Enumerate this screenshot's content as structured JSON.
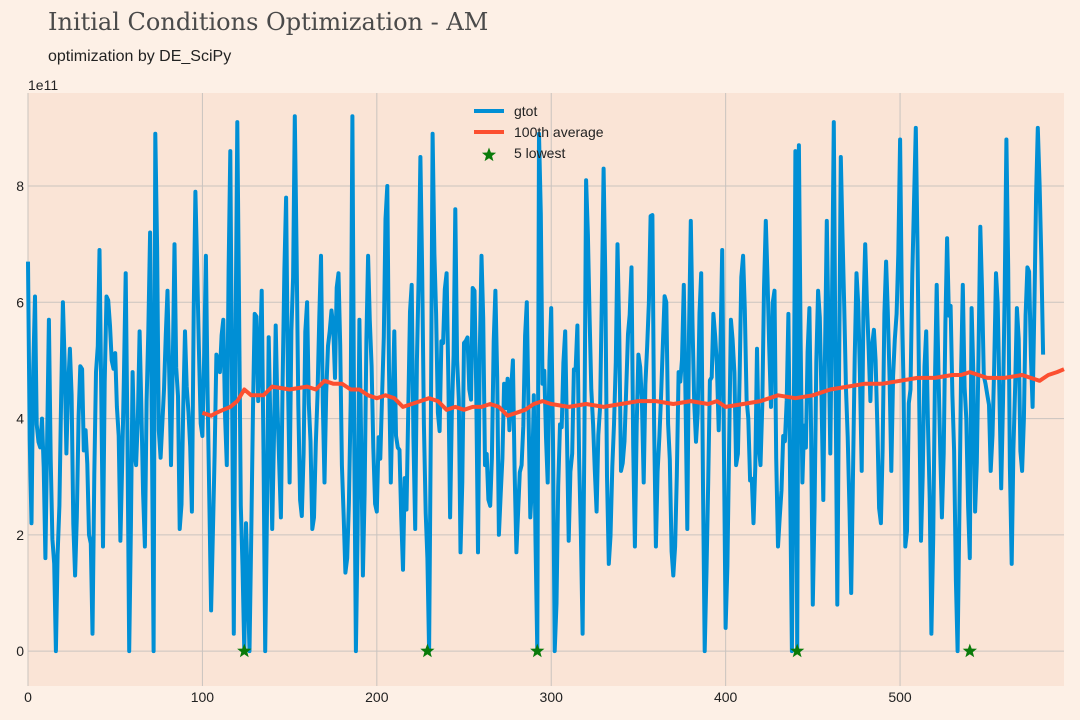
{
  "title": "Initial Conditions Optimization - AM",
  "subtitle": "optimization by DE_SciPy",
  "chart_data": {
    "type": "line",
    "y_multiplier": "1e11",
    "xlim": [
      0,
      594
    ],
    "ylim": [
      -0.6,
      9.6
    ],
    "grid": true,
    "legend_position": "top-center",
    "x_ticks": [
      0,
      100,
      200,
      300,
      400,
      500
    ],
    "y_ticks": [
      0,
      2,
      4,
      6,
      8
    ],
    "series": [
      {
        "name": "gtot",
        "color": "#008fd5",
        "anchors_x": [
          0,
          2,
          4,
          5,
          8,
          10,
          12,
          13,
          16,
          18,
          20,
          22,
          24,
          27,
          30,
          33,
          37,
          39,
          41,
          43,
          45,
          48,
          51,
          53,
          56,
          58,
          60,
          62,
          64,
          67,
          70,
          72,
          73,
          75,
          78,
          80,
          82,
          84,
          87,
          90,
          92,
          94,
          96,
          98,
          100,
          102,
          105,
          108,
          110,
          112,
          114,
          116,
          118,
          120,
          122,
          124,
          125,
          127,
          130,
          132,
          134,
          136,
          138,
          140,
          142,
          145,
          148,
          150,
          153,
          156,
          158,
          160,
          163,
          166,
          168,
          170,
          173,
          176,
          178,
          180,
          183,
          185,
          186,
          188,
          190,
          192,
          195,
          198,
          200,
          203,
          206,
          208,
          210,
          212,
          215,
          218,
          220,
          222,
          225,
          227,
          229,
          230,
          232,
          235,
          238,
          240,
          242,
          245,
          248,
          250,
          253,
          256,
          258,
          260,
          262,
          265,
          268,
          270,
          273,
          276,
          278,
          280,
          283,
          286,
          288,
          290,
          292,
          293,
          295,
          298,
          300,
          302,
          305,
          308,
          310,
          312,
          315,
          318,
          320,
          323,
          326,
          328,
          330,
          333,
          336,
          338,
          340,
          343,
          346,
          348,
          350,
          353,
          356,
          358,
          360,
          363,
          366,
          368,
          370,
          373,
          376,
          378,
          380,
          383,
          386,
          388,
          390,
          393,
          396,
          398,
          400,
          403,
          406,
          408,
          410,
          413,
          416,
          418,
          420,
          423,
          426,
          428,
          430,
          433,
          436,
          438,
          440,
          441,
          442,
          444,
          446,
          448,
          450,
          453,
          456,
          458,
          460,
          462,
          464,
          466,
          469,
          472,
          475,
          478,
          480,
          483,
          486,
          489,
          492,
          495,
          498,
          500,
          503,
          506,
          509,
          512,
          515,
          518,
          521,
          524,
          527,
          530,
          533,
          536,
          538,
          540,
          541,
          543,
          546,
          549,
          552,
          555,
          558,
          561,
          564,
          567,
          570,
          573,
          576,
          579,
          582,
          585,
          588,
          591,
          593
        ],
        "anchors_y": [
          6.7,
          2.2,
          6.1,
          3.9,
          4.0,
          1.6,
          5.7,
          3.3,
          0.0,
          2.5,
          6.0,
          3.4,
          5.2,
          1.3,
          4.9,
          3.8,
          0.3,
          4.8,
          6.9,
          1.8,
          6.1,
          5.0,
          4.2,
          1.9,
          6.5,
          0.0,
          4.8,
          3.2,
          5.5,
          1.8,
          7.2,
          0.0,
          8.9,
          3.8,
          4.5,
          6.2,
          3.2,
          7.0,
          2.1,
          5.5,
          4.1,
          2.4,
          7.9,
          5.2,
          3.7,
          6.8,
          0.7,
          5.1,
          4.8,
          5.7,
          3.2,
          8.6,
          0.3,
          9.1,
          2.5,
          0.0,
          2.2,
          0.0,
          5.8,
          4.3,
          6.2,
          0.0,
          5.4,
          2.1,
          5.6,
          2.3,
          7.8,
          2.9,
          9.2,
          2.6,
          3.4,
          6.0,
          2.1,
          4.4,
          6.8,
          2.9,
          5.5,
          4.7,
          6.5,
          3.2,
          1.6,
          4.3,
          9.2,
          0.0,
          5.7,
          1.3,
          6.8,
          3.5,
          2.4,
          4.4,
          8.0,
          2.9,
          5.5,
          3.5,
          1.4,
          4.1,
          6.3,
          2.1,
          8.5,
          3.9,
          1.6,
          0.0,
          8.9,
          4.1,
          5.3,
          6.5,
          2.3,
          7.6,
          1.7,
          5.3,
          4.5,
          6.2,
          1.7,
          6.8,
          3.2,
          2.5,
          6.2,
          2.0,
          4.6,
          3.8,
          5.0,
          1.7,
          3.2,
          6.0,
          2.3,
          4.4,
          0.0,
          8.9,
          4.6,
          2.9,
          5.9,
          0.0,
          3.9,
          5.5,
          1.9,
          3.4,
          5.6,
          0.3,
          8.1,
          4.5,
          2.4,
          4.2,
          8.3,
          1.5,
          3.9,
          7.0,
          3.1,
          4.5,
          6.6,
          1.8,
          5.1,
          2.9,
          6.0,
          7.5,
          1.8,
          4.4,
          6.0,
          3.3,
          1.3,
          4.8,
          6.3,
          2.1,
          7.4,
          3.6,
          6.5,
          0.0,
          2.9,
          5.8,
          3.8,
          6.9,
          0.4,
          5.7,
          3.2,
          4.7,
          6.8,
          4.0,
          2.2,
          5.2,
          3.2,
          7.4,
          4.2,
          6.2,
          1.8,
          3.7,
          5.8,
          0.0,
          8.6,
          0.0,
          8.7,
          2.9,
          3.5,
          5.9,
          0.8,
          6.2,
          2.6,
          7.4,
          3.4,
          9.1,
          0.8,
          8.5,
          4.5,
          1.0,
          6.5,
          3.1,
          7.0,
          4.3,
          5.0,
          2.2,
          6.7,
          3.1,
          5.8,
          8.8,
          1.8,
          4.5,
          9.0,
          1.9,
          5.5,
          0.3,
          6.3,
          2.3,
          7.1,
          4.4,
          0.0,
          6.3,
          4.0,
          1.6,
          5.9,
          2.4,
          7.3,
          4.6,
          3.1,
          6.5,
          2.8,
          8.8,
          1.5,
          5.9,
          3.1,
          6.6,
          4.2,
          9.0,
          5.1
        ],
        "minima": [
          [
            124,
            0.0
          ],
          [
            229,
            0.0
          ],
          [
            292,
            0.0
          ],
          [
            441,
            0.0
          ],
          [
            540,
            0.0
          ]
        ]
      },
      {
        "name": "100th average",
        "color": "#fc4f30",
        "x": [
          100,
          105,
          108,
          112,
          116,
          120,
          124,
          128,
          135,
          140,
          150,
          160,
          165,
          170,
          175,
          180,
          185,
          190,
          195,
          200,
          205,
          210,
          215,
          220,
          225,
          230,
          235,
          240,
          245,
          250,
          255,
          260,
          265,
          270,
          275,
          280,
          285,
          290,
          295,
          300,
          310,
          320,
          330,
          340,
          350,
          360,
          370,
          380,
          390,
          395,
          400,
          410,
          420,
          430,
          440,
          450,
          460,
          470,
          480,
          490,
          500,
          510,
          520,
          530,
          535,
          540,
          545,
          550,
          560,
          570,
          580,
          585,
          590,
          594
        ],
        "y": [
          4.1,
          4.05,
          4.1,
          4.15,
          4.2,
          4.3,
          4.5,
          4.4,
          4.4,
          4.55,
          4.5,
          4.55,
          4.5,
          4.65,
          4.6,
          4.6,
          4.5,
          4.5,
          4.4,
          4.35,
          4.4,
          4.35,
          4.2,
          4.25,
          4.3,
          4.35,
          4.3,
          4.15,
          4.2,
          4.15,
          4.2,
          4.2,
          4.25,
          4.2,
          4.05,
          4.1,
          4.15,
          4.25,
          4.3,
          4.25,
          4.2,
          4.25,
          4.2,
          4.25,
          4.3,
          4.3,
          4.25,
          4.3,
          4.25,
          4.3,
          4.2,
          4.25,
          4.3,
          4.4,
          4.35,
          4.4,
          4.5,
          4.55,
          4.6,
          4.6,
          4.65,
          4.7,
          4.7,
          4.75,
          4.75,
          4.8,
          4.75,
          4.7,
          4.7,
          4.75,
          4.65,
          4.75,
          4.8,
          4.85
        ]
      }
    ],
    "legend": [
      {
        "label": "gtot",
        "marker": "line",
        "color": "#008fd5"
      },
      {
        "label": "100th average",
        "marker": "line",
        "color": "#fc4f30"
      },
      {
        "label": "5 lowest",
        "marker": "star",
        "color": "#0a7a0a"
      }
    ]
  }
}
